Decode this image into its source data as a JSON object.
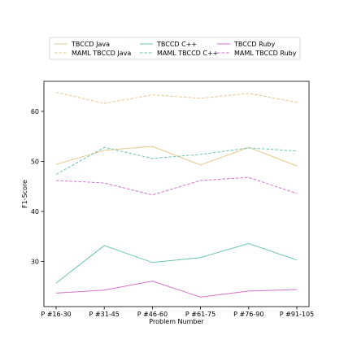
{
  "chart_data": {
    "type": "line",
    "title": "",
    "xlabel": "Problem Number",
    "ylabel": "F1-Score",
    "categories": [
      "P #16-30",
      "P #31-45",
      "P #46-60",
      "P #61-75",
      "P #76-90",
      "P #91-105"
    ],
    "ylim": [
      21.0,
      66.0
    ],
    "yticks": [
      30,
      40,
      50,
      60
    ],
    "grid": false,
    "legend": "top-center, 3 columns",
    "series": [
      {
        "name": "TBCCD Java",
        "color": "#e6c88c",
        "dash": "solid",
        "values": [
          49.4,
          52.2,
          53.0,
          49.3,
          52.8,
          49.1
        ]
      },
      {
        "name": "MAML TBCCD Java",
        "color": "#e6c88c",
        "dash": "dashed",
        "values": [
          63.8,
          61.6,
          63.3,
          62.6,
          63.6,
          61.8
        ]
      },
      {
        "name": "TBCCD C++",
        "color": "#6cc5b0",
        "dash": "solid",
        "values": [
          25.7,
          33.2,
          29.8,
          30.8,
          33.6,
          30.3
        ]
      },
      {
        "name": "MAML TBCCD C++",
        "color": "#6cc5b0",
        "dash": "dashed",
        "values": [
          47.4,
          52.8,
          50.6,
          51.4,
          52.7,
          52.1
        ]
      },
      {
        "name": "TBCCD Ruby",
        "color": "#d670c8",
        "dash": "solid",
        "values": [
          23.7,
          24.3,
          26.1,
          22.9,
          24.1,
          24.4
        ]
      },
      {
        "name": "MAML TBCCD Ruby",
        "color": "#d670c8",
        "dash": "dashed",
        "values": [
          46.2,
          45.7,
          43.3,
          46.2,
          46.8,
          43.6
        ]
      }
    ]
  }
}
